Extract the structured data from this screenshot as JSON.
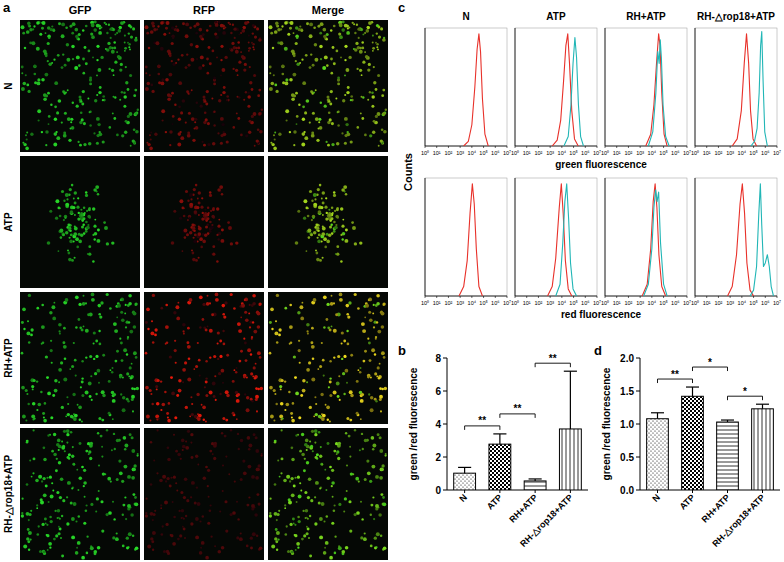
{
  "panel_a": {
    "label": "a",
    "columns": [
      "GFP",
      "RFP",
      "Merge"
    ],
    "rows": [
      "N",
      "ATP",
      "RH+ATP",
      "RH-△rop18+ATP"
    ]
  },
  "panel_b": {
    "label": "b"
  },
  "panel_c": {
    "label": "c",
    "y_label": "Counts",
    "row_labels": [
      "green fluorescence",
      "red fluorescence"
    ]
  },
  "panel_d": {
    "label": "d"
  },
  "chart_data": [
    {
      "type": "line",
      "title": "N",
      "log": "x",
      "xlim": [
        1,
        10000000
      ],
      "ylim": [
        0,
        100
      ],
      "tick_labels": "x",
      "xticks": [
        {
          "value": 1,
          "label": "10⁰"
        },
        {
          "value": 10,
          "label": "10¹"
        },
        {
          "value": 100,
          "label": "10²"
        },
        {
          "value": 1000,
          "label": "10³"
        },
        {
          "value": 10000,
          "label": "10⁴"
        },
        {
          "value": 100000,
          "label": "10⁵"
        },
        {
          "value": 1000000,
          "label": "10⁶"
        },
        {
          "value": 10000000,
          "label": "10⁷"
        }
      ],
      "series": [
        {
          "color": "#e8312a",
          "x": [
            2000,
            5000,
            10000,
            18000,
            28000,
            40000,
            55000,
            80000,
            130000,
            250000
          ],
          "values": [
            0,
            4,
            18,
            50,
            82,
            95,
            80,
            40,
            10,
            0
          ]
        }
      ]
    },
    {
      "type": "line",
      "title": "ATP",
      "log": "x",
      "xlim": [
        1,
        10000000
      ],
      "ylim": [
        0,
        100
      ],
      "tick_labels": "x",
      "xticks": [
        {
          "value": 1,
          "label": "10⁰"
        },
        {
          "value": 10,
          "label": "10¹"
        },
        {
          "value": 100,
          "label": "10²"
        },
        {
          "value": 1000,
          "label": "10³"
        },
        {
          "value": 10000,
          "label": "10⁴"
        },
        {
          "value": 100000,
          "label": "10⁵"
        },
        {
          "value": 1000000,
          "label": "10⁶"
        },
        {
          "value": 10000000,
          "label": "10⁷"
        }
      ],
      "series": [
        {
          "color": "#e8312a",
          "x": [
            1500,
            4000,
            8000,
            14000,
            22000,
            32000,
            45000,
            70000,
            120000,
            250000
          ],
          "values": [
            0,
            5,
            22,
            55,
            85,
            95,
            70,
            30,
            6,
            0
          ]
        },
        {
          "color": "#21b6b6",
          "x": [
            15000,
            35000,
            60000,
            90000,
            130000,
            180000,
            260000,
            400000,
            700000
          ],
          "values": [
            0,
            8,
            35,
            70,
            92,
            75,
            35,
            8,
            0
          ]
        }
      ]
    },
    {
      "type": "line",
      "title": "RH+ATP",
      "log": "x",
      "xlim": [
        1,
        10000000
      ],
      "ylim": [
        0,
        100
      ],
      "tick_labels": "x",
      "xticks": [
        {
          "value": 1,
          "label": "10⁰"
        },
        {
          "value": 10,
          "label": "10¹"
        },
        {
          "value": 100,
          "label": "10²"
        },
        {
          "value": 1000,
          "label": "10³"
        },
        {
          "value": 10000,
          "label": "10⁴"
        },
        {
          "value": 100000,
          "label": "10⁵"
        },
        {
          "value": 1000000,
          "label": "10⁶"
        },
        {
          "value": 10000000,
          "label": "10⁷"
        }
      ],
      "series": [
        {
          "color": "#e8312a",
          "x": [
            3000,
            8000,
            15000,
            25000,
            38000,
            50000,
            70000,
            110000,
            200000
          ],
          "values": [
            0,
            10,
            35,
            70,
            95,
            85,
            45,
            10,
            0
          ]
        },
        {
          "color": "#21b6b6",
          "x": [
            5000,
            12000,
            22000,
            32000,
            42000,
            52000,
            65000,
            90000,
            150000,
            300000
          ],
          "values": [
            0,
            12,
            45,
            80,
            70,
            90,
            75,
            35,
            8,
            0
          ]
        }
      ]
    },
    {
      "type": "line",
      "title": "RH-△rop18+ATP",
      "log": "x",
      "xlim": [
        1,
        10000000
      ],
      "ylim": [
        0,
        100
      ],
      "tick_labels": "x",
      "xticks": [
        {
          "value": 1,
          "label": "10⁰"
        },
        {
          "value": 10,
          "label": "10¹"
        },
        {
          "value": 100,
          "label": "10²"
        },
        {
          "value": 1000,
          "label": "10³"
        },
        {
          "value": 10000,
          "label": "10⁴"
        },
        {
          "value": 100000,
          "label": "10⁵"
        },
        {
          "value": 1000000,
          "label": "10⁶"
        },
        {
          "value": 10000000,
          "label": "10⁷"
        }
      ],
      "series": [
        {
          "color": "#e8312a",
          "x": [
            1500,
            4000,
            9000,
            16000,
            25000,
            38000,
            55000,
            90000,
            180000
          ],
          "values": [
            0,
            6,
            30,
            70,
            95,
            70,
            30,
            6,
            0
          ]
        },
        {
          "color": "#21b6b6",
          "x": [
            60000,
            120000,
            200000,
            300000,
            400000,
            500000,
            650000,
            900000,
            1500000
          ],
          "values": [
            0,
            4,
            15,
            45,
            85,
            97,
            55,
            12,
            0
          ]
        }
      ]
    },
    {
      "type": "line",
      "log": "x",
      "xlim": [
        1,
        10000000
      ],
      "ylim": [
        0,
        100
      ],
      "tick_labels": "x",
      "xticks": [
        {
          "value": 1,
          "label": "10⁰"
        },
        {
          "value": 10,
          "label": "10¹"
        },
        {
          "value": 100,
          "label": "10²"
        },
        {
          "value": 1000,
          "label": "10³"
        },
        {
          "value": 10000,
          "label": "10⁴"
        },
        {
          "value": 100000,
          "label": "10⁵"
        },
        {
          "value": 1000000,
          "label": "10⁶"
        },
        {
          "value": 10000000,
          "label": "10⁷"
        }
      ],
      "series": [
        {
          "color": "#e8312a",
          "x": [
            800,
            2000,
            4000,
            7000,
            11000,
            16000,
            24000,
            40000,
            80000
          ],
          "values": [
            0,
            8,
            30,
            70,
            95,
            78,
            40,
            8,
            0
          ]
        }
      ]
    },
    {
      "type": "line",
      "log": "x",
      "xlim": [
        1,
        10000000
      ],
      "ylim": [
        0,
        100
      ],
      "tick_labels": "x",
      "xticks": [
        {
          "value": 1,
          "label": "10⁰"
        },
        {
          "value": 10,
          "label": "10¹"
        },
        {
          "value": 100,
          "label": "10²"
        },
        {
          "value": 1000,
          "label": "10³"
        },
        {
          "value": 10000,
          "label": "10⁴"
        },
        {
          "value": 100000,
          "label": "10⁵"
        },
        {
          "value": 1000000,
          "label": "10⁶"
        },
        {
          "value": 10000000,
          "label": "10⁷"
        }
      ],
      "series": [
        {
          "color": "#e8312a",
          "x": [
            600,
            1500,
            3000,
            6000,
            9000,
            13000,
            20000,
            35000,
            70000
          ],
          "values": [
            0,
            8,
            32,
            75,
            95,
            70,
            30,
            6,
            0
          ]
        },
        {
          "color": "#21b6b6",
          "x": [
            3000,
            7000,
            12000,
            18000,
            26000,
            38000,
            55000,
            90000,
            180000
          ],
          "values": [
            0,
            10,
            45,
            80,
            95,
            65,
            28,
            6,
            0
          ]
        }
      ]
    },
    {
      "type": "line",
      "log": "x",
      "xlim": [
        1,
        10000000
      ],
      "ylim": [
        0,
        100
      ],
      "tick_labels": "x",
      "xticks": [
        {
          "value": 1,
          "label": "10⁰"
        },
        {
          "value": 10,
          "label": "10¹"
        },
        {
          "value": 100,
          "label": "10²"
        },
        {
          "value": 1000,
          "label": "10³"
        },
        {
          "value": 10000,
          "label": "10⁴"
        },
        {
          "value": 100000,
          "label": "10⁵"
        },
        {
          "value": 1000000,
          "label": "10⁶"
        },
        {
          "value": 10000000,
          "label": "10⁷"
        }
      ],
      "series": [
        {
          "color": "#e8312a",
          "x": [
            1500,
            4000,
            8000,
            13000,
            19000,
            27000,
            40000,
            70000,
            150000
          ],
          "values": [
            0,
            10,
            40,
            80,
            95,
            75,
            35,
            8,
            0
          ]
        },
        {
          "color": "#21b6b6",
          "x": [
            2000,
            5000,
            10000,
            15000,
            21000,
            28000,
            38000,
            55000,
            100000,
            200000
          ],
          "values": [
            0,
            10,
            40,
            75,
            90,
            80,
            88,
            45,
            10,
            0
          ]
        }
      ]
    },
    {
      "type": "line",
      "log": "x",
      "xlim": [
        1,
        10000000
      ],
      "ylim": [
        0,
        100
      ],
      "tick_labels": "x",
      "xticks": [
        {
          "value": 1,
          "label": "10⁰"
        },
        {
          "value": 10,
          "label": "10¹"
        },
        {
          "value": 100,
          "label": "10²"
        },
        {
          "value": 1000,
          "label": "10³"
        },
        {
          "value": 10000,
          "label": "10⁴"
        },
        {
          "value": 100000,
          "label": "10⁵"
        },
        {
          "value": 1000000,
          "label": "10⁶"
        },
        {
          "value": 10000000,
          "label": "10⁷"
        }
      ],
      "series": [
        {
          "color": "#e8312a",
          "x": [
            600,
            1500,
            3500,
            7000,
            11000,
            17000,
            27000,
            50000,
            100000
          ],
          "values": [
            0,
            8,
            35,
            78,
            95,
            70,
            28,
            5,
            0
          ]
        },
        {
          "color": "#21b6b6",
          "x": [
            50000,
            100000,
            180000,
            280000,
            380000,
            500000,
            700000,
            1000000,
            1500000,
            2200000,
            3200000,
            5000000
          ],
          "values": [
            0,
            5,
            25,
            70,
            95,
            60,
            25,
            28,
            35,
            25,
            8,
            0
          ]
        }
      ]
    },
    {
      "type": "bar",
      "y_label": "green /red fluorescence",
      "categories": [
        "N",
        "ATP",
        "RH+ATP",
        "RH-△rop18+ATP"
      ],
      "values": [
        1.02,
        2.78,
        0.55,
        3.7
      ],
      "errors": [
        0.35,
        0.62,
        0.12,
        3.5
      ],
      "ylim": [
        0,
        8
      ],
      "yticks": [
        0,
        2,
        4,
        6,
        8
      ],
      "color": "#000000",
      "annotations": [
        {
          "from": 0,
          "to": 1,
          "text": "**"
        },
        {
          "from": 1,
          "to": 2,
          "text": "**"
        },
        {
          "from": 2,
          "to": 3,
          "text": "**"
        }
      ]
    },
    {
      "type": "bar",
      "y_label": "green /red fluorescence",
      "categories": [
        "N",
        "ATP",
        "RH+ATP",
        "RH-△rop18+ATP"
      ],
      "values": [
        1.08,
        1.42,
        1.03,
        1.23
      ],
      "errors": [
        0.09,
        0.14,
        0.03,
        0.07
      ],
      "ylim": [
        0,
        2
      ],
      "yticks": [
        {
          "value": 0,
          "label": "0.0"
        },
        {
          "value": 0.5,
          "label": "0.5"
        },
        {
          "value": 1,
          "label": "1.0"
        },
        {
          "value": 1.5,
          "label": "1.5"
        },
        {
          "value": 2,
          "label": "2.0"
        }
      ],
      "color": "#000000",
      "annotations": [
        {
          "from": 0,
          "to": 1,
          "text": "**"
        },
        {
          "from": 1,
          "to": 2,
          "text": "*"
        },
        {
          "from": 2,
          "to": 3,
          "text": "*"
        }
      ]
    }
  ]
}
